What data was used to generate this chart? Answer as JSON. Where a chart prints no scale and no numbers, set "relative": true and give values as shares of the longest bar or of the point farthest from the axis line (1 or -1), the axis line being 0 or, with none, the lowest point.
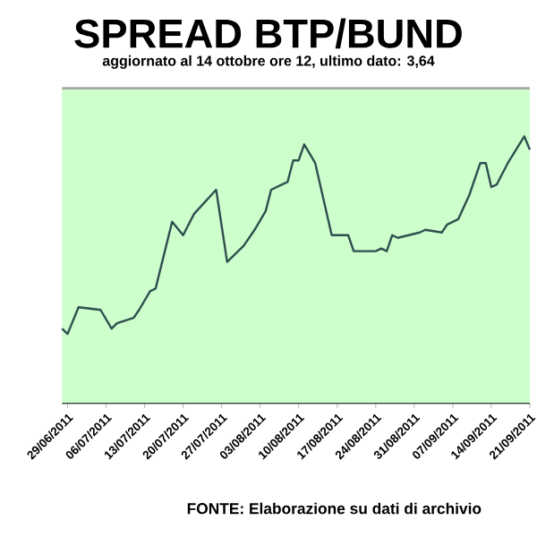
{
  "chart_data": {
    "type": "line",
    "title": "SPREAD BTP/BUND",
    "subtitle": "aggiornato al 14 ottobre ore 12, ultimo dato: 3,64",
    "annotations": [
      "FONTE: Elaborazione su dati di archivio"
    ],
    "relative": true,
    "color": "#2f4f4f",
    "x": [
      "2011-06-28",
      "2011-06-29",
      "2011-07-01",
      "2011-07-05",
      "2011-07-07",
      "2011-07-08",
      "2011-07-11",
      "2011-07-12",
      "2011-07-14",
      "2011-07-15",
      "2011-07-18",
      "2011-07-20",
      "2011-07-22",
      "2011-07-26",
      "2011-07-28",
      "2011-07-31",
      "2011-08-02",
      "2011-08-04",
      "2011-08-05",
      "2011-08-08",
      "2011-08-09",
      "2011-08-10",
      "2011-08-11",
      "2011-08-13",
      "2011-08-16",
      "2011-08-19",
      "2011-08-20",
      "2011-08-24",
      "2011-08-25",
      "2011-08-26",
      "2011-08-27",
      "2011-08-28",
      "2011-09-01",
      "2011-09-02",
      "2011-09-05",
      "2011-09-06",
      "2011-09-08",
      "2011-09-10",
      "2011-09-12",
      "2011-09-13",
      "2011-09-14",
      "2011-09-15",
      "2011-09-17",
      "2011-09-20",
      "2011-09-21"
    ],
    "values": [
      0.28,
      0.26,
      0.36,
      0.35,
      0.28,
      0.3,
      0.32,
      0.35,
      0.42,
      0.43,
      0.68,
      0.63,
      0.71,
      0.8,
      0.53,
      0.59,
      0.65,
      0.72,
      0.8,
      0.83,
      0.91,
      0.91,
      0.97,
      0.9,
      0.63,
      0.63,
      0.57,
      0.57,
      0.58,
      0.57,
      0.63,
      0.62,
      0.64,
      0.65,
      0.64,
      0.67,
      0.69,
      0.78,
      0.9,
      0.9,
      0.81,
      0.82,
      0.9,
      1,
      0.95
    ],
    "xlim": [
      "2011-06-28",
      "2011-09-21"
    ],
    "xticks": [
      {
        "value": "2011-06-29",
        "label": "29/06/2011"
      },
      {
        "value": "2011-07-06",
        "label": "06/07/2011"
      },
      {
        "value": "2011-07-13",
        "label": "13/07/2011"
      },
      {
        "value": "2011-07-20",
        "label": "20/07/2011"
      },
      {
        "value": "2011-07-27",
        "label": "27/07/2011"
      },
      {
        "value": "2011-08-03",
        "label": "03/08/2011"
      },
      {
        "value": "2011-08-10",
        "label": "10/08/2011"
      },
      {
        "value": "2011-08-17",
        "label": "17/08/2011"
      },
      {
        "value": "2011-08-24",
        "label": "24/08/2011"
      },
      {
        "value": "2011-08-31",
        "label": "31/08/2011"
      },
      {
        "value": "2011-09-07",
        "label": "07/09/2011"
      },
      {
        "value": "2011-09-14",
        "label": "14/09/2011"
      },
      {
        "value": "2011-09-21",
        "label": "21/09/2011"
      }
    ]
  }
}
